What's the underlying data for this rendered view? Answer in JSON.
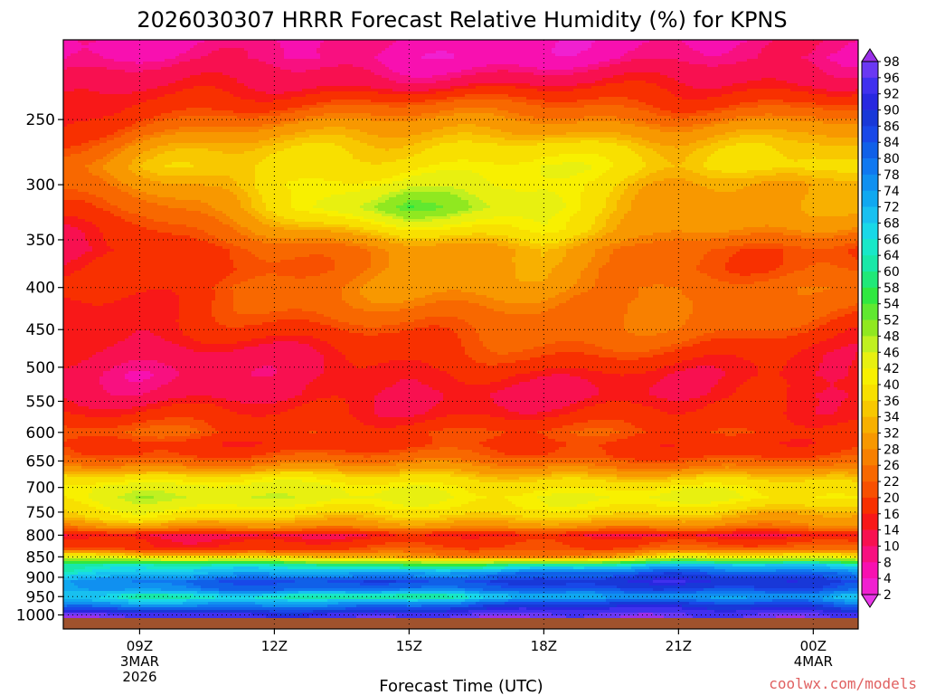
{
  "title": "2026030307 HRRR Forecast Relative Humidity (%) for KPNS",
  "footer": {
    "xlabel": "Forecast Time (UTC)",
    "credit": "coolwx.com/models"
  },
  "colors": {
    "plot_border": "#000000",
    "grid": "#000000",
    "ground": "#a0522d",
    "credit": "#e06060"
  },
  "chart_data": {
    "type": "heatmap",
    "title": "2026030307 HRRR Forecast Relative Humidity (%) for KPNS",
    "xlabel": "Forecast Time (UTC)",
    "ylabel": "",
    "y_scale": "log-pressure",
    "ylim_hPa": [
      1040,
      200
    ],
    "xlim_hours_utc": [
      7.3,
      25.0
    ],
    "x_ticks": [
      {
        "label": "09Z",
        "sub1": "3MAR",
        "sub2": "2026"
      },
      {
        "label": "12Z",
        "sub1": "",
        "sub2": ""
      },
      {
        "label": "15Z",
        "sub1": "",
        "sub2": ""
      },
      {
        "label": "18Z",
        "sub1": "",
        "sub2": ""
      },
      {
        "label": "21Z",
        "sub1": "",
        "sub2": ""
      },
      {
        "label": "00Z",
        "sub1": "4MAR",
        "sub2": ""
      }
    ],
    "x_tick_hours": [
      9,
      12,
      15,
      18,
      21,
      24
    ],
    "y_ticks": [
      "250",
      "300",
      "350",
      "400",
      "450",
      "500",
      "550",
      "600",
      "650",
      "700",
      "750",
      "800",
      "850",
      "900",
      "950",
      "1000"
    ],
    "y_tick_hPa": [
      250,
      300,
      350,
      400,
      450,
      500,
      550,
      600,
      650,
      700,
      750,
      800,
      850,
      900,
      950,
      1000
    ],
    "grid": true,
    "colorbar": {
      "placement": "right",
      "labels": [
        "98",
        "96",
        "92",
        "90",
        "86",
        "84",
        "80",
        "78",
        "74",
        "72",
        "68",
        "66",
        "64",
        "60",
        "58",
        "54",
        "52",
        "48",
        "46",
        "42",
        "40",
        "36",
        "34",
        "32",
        "28",
        "26",
        "22",
        "20",
        "16",
        "14",
        "10",
        "8",
        "4",
        "2"
      ],
      "bands": [
        "#9a30e8",
        "#6a38f2",
        "#4030ee",
        "#2828e0",
        "#1838d8",
        "#1848e8",
        "#1060e8",
        "#1078f0",
        "#1090f0",
        "#10a8f0",
        "#18c0f0",
        "#18d8e8",
        "#18e8c8",
        "#18e8a8",
        "#20e878",
        "#30e840",
        "#60e830",
        "#90e820",
        "#c0f020",
        "#e8f010",
        "#f8f000",
        "#f8e000",
        "#f8c800",
        "#f8b000",
        "#f89800",
        "#f88000",
        "#f86800",
        "#f85000",
        "#f83000",
        "#f81818",
        "#f81050",
        "#f81080",
        "#f810b0",
        "#f020d0",
        "#e838e8"
      ]
    },
    "profile_hPa": [
      1000,
      970,
      950,
      930,
      910,
      890,
      870,
      850,
      830,
      810,
      800,
      780,
      760,
      740,
      720,
      700,
      680,
      660,
      640,
      620,
      600,
      570,
      540,
      510,
      480,
      450,
      420,
      400,
      380,
      360,
      340,
      320,
      300,
      285,
      270,
      255,
      240,
      225,
      210
    ],
    "profile_times": [
      7.3,
      9,
      12,
      15,
      18,
      21,
      24,
      25
    ],
    "rh_profiles": [
      [
        96,
        74,
        68,
        72,
        74,
        66,
        62,
        46,
        20,
        16,
        14,
        26,
        34,
        38,
        42,
        44,
        40,
        30,
        22,
        18,
        20,
        16,
        14,
        12,
        12,
        14,
        16,
        18,
        14,
        12,
        16,
        20,
        22,
        24,
        20,
        16,
        12,
        10,
        8
      ],
      [
        96,
        72,
        60,
        74,
        78,
        70,
        66,
        40,
        18,
        16,
        14,
        30,
        38,
        42,
        46,
        44,
        38,
        28,
        20,
        18,
        22,
        16,
        12,
        10,
        12,
        14,
        16,
        18,
        16,
        14,
        18,
        24,
        28,
        32,
        30,
        24,
        18,
        12,
        8
      ],
      [
        94,
        76,
        64,
        82,
        84,
        72,
        62,
        36,
        18,
        16,
        14,
        30,
        36,
        40,
        44,
        42,
        38,
        28,
        22,
        18,
        20,
        16,
        12,
        12,
        14,
        18,
        22,
        24,
        22,
        22,
        28,
        36,
        40,
        38,
        34,
        28,
        20,
        14,
        8
      ],
      [
        96,
        78,
        60,
        80,
        86,
        74,
        56,
        28,
        20,
        16,
        14,
        30,
        36,
        42,
        44,
        42,
        36,
        28,
        22,
        18,
        20,
        16,
        14,
        14,
        18,
        22,
        26,
        28,
        28,
        30,
        40,
        52,
        44,
        40,
        36,
        30,
        22,
        12,
        6
      ],
      [
        96,
        86,
        70,
        84,
        88,
        82,
        62,
        26,
        20,
        18,
        14,
        28,
        34,
        40,
        42,
        40,
        36,
        28,
        20,
        18,
        20,
        16,
        14,
        16,
        20,
        24,
        28,
        30,
        30,
        32,
        42,
        44,
        40,
        42,
        40,
        32,
        22,
        12,
        6
      ],
      [
        98,
        88,
        72,
        84,
        90,
        84,
        70,
        42,
        24,
        20,
        14,
        28,
        34,
        38,
        42,
        40,
        34,
        26,
        20,
        18,
        20,
        16,
        14,
        16,
        20,
        24,
        26,
        26,
        22,
        20,
        26,
        30,
        32,
        34,
        32,
        28,
        20,
        14,
        8
      ],
      [
        98,
        86,
        74,
        86,
        88,
        80,
        66,
        40,
        22,
        18,
        14,
        28,
        32,
        36,
        40,
        38,
        34,
        26,
        20,
        18,
        20,
        16,
        14,
        14,
        16,
        20,
        22,
        24,
        22,
        22,
        28,
        32,
        34,
        40,
        36,
        30,
        22,
        14,
        8
      ],
      [
        96,
        80,
        70,
        82,
        86,
        78,
        64,
        38,
        22,
        18,
        14,
        28,
        32,
        36,
        40,
        36,
        32,
        24,
        20,
        18,
        20,
        16,
        14,
        14,
        16,
        18,
        22,
        24,
        22,
        20,
        26,
        30,
        32,
        38,
        34,
        28,
        20,
        14,
        8
      ]
    ]
  }
}
